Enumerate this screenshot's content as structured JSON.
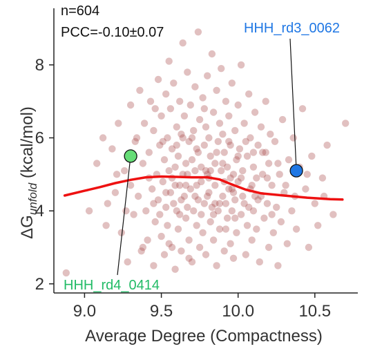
{
  "chart_data": {
    "type": "scatter",
    "xlabel": "Average Degree (Compactness)",
    "ylabel_main": "ΔG",
    "ylabel_sub": "unfold",
    "ylabel_rest": " (kcal/mol)",
    "xlim": [
      8.8,
      10.78
    ],
    "ylim": [
      1.75,
      9.55
    ],
    "x_ticks": [
      9.0,
      9.5,
      10.0,
      10.5
    ],
    "x_tick_labels": [
      "9.0",
      "9.5",
      "10.0",
      "10.5"
    ],
    "y_ticks": [
      2,
      4,
      6,
      8
    ],
    "y_tick_labels": [
      "2",
      "4",
      "6",
      "8"
    ],
    "stats": {
      "n": "n=604",
      "pcc": "PCC=-0.10±0.07"
    },
    "point_color": "#a94a4a",
    "trend_color": "#ee1111",
    "trend": [
      [
        8.87,
        4.42
      ],
      [
        9.0,
        4.55
      ],
      [
        9.1,
        4.65
      ],
      [
        9.2,
        4.76
      ],
      [
        9.3,
        4.85
      ],
      [
        9.4,
        4.92
      ],
      [
        9.5,
        4.94
      ],
      [
        9.6,
        4.93
      ],
      [
        9.7,
        4.92
      ],
      [
        9.8,
        4.92
      ],
      [
        9.88,
        4.86
      ],
      [
        9.95,
        4.74
      ],
      [
        10.05,
        4.58
      ],
      [
        10.15,
        4.48
      ],
      [
        10.3,
        4.42
      ],
      [
        10.45,
        4.36
      ],
      [
        10.6,
        4.32
      ],
      [
        10.68,
        4.31
      ]
    ],
    "highlights": [
      {
        "name": "HHH_rd4_0414",
        "x": 9.3,
        "y": 5.5,
        "color": "#66dd77",
        "text_color": "#22bb66",
        "label_anchor": "bottom-left"
      },
      {
        "name": "HHH_rd3_0062",
        "x": 10.38,
        "y": 5.1,
        "color": "#1f77e4",
        "text_color": "#1f77e4",
        "label_anchor": "top-right"
      }
    ],
    "points": [
      [
        8.88,
        2.3
      ],
      [
        9.03,
        4.0
      ],
      [
        9.08,
        5.3
      ],
      [
        9.12,
        6.0
      ],
      [
        9.15,
        4.2
      ],
      [
        9.18,
        5.7
      ],
      [
        9.2,
        4.5
      ],
      [
        9.22,
        6.4
      ],
      [
        9.24,
        3.4
      ],
      [
        9.26,
        5.1
      ],
      [
        9.28,
        2.6
      ],
      [
        9.3,
        4.7
      ],
      [
        9.3,
        6.9
      ],
      [
        9.32,
        3.9
      ],
      [
        9.33,
        5.9
      ],
      [
        9.35,
        4.4
      ],
      [
        9.36,
        7.3
      ],
      [
        9.37,
        2.9
      ],
      [
        9.38,
        5.3
      ],
      [
        9.39,
        6.4
      ],
      [
        9.4,
        4.0
      ],
      [
        9.41,
        3.2
      ],
      [
        9.42,
        5.6
      ],
      [
        9.43,
        7.0
      ],
      [
        9.44,
        4.6
      ],
      [
        9.45,
        2.5
      ],
      [
        9.45,
        6.2
      ],
      [
        9.46,
        3.7
      ],
      [
        9.47,
        5.0
      ],
      [
        9.48,
        7.6
      ],
      [
        9.48,
        4.3
      ],
      [
        9.49,
        5.8
      ],
      [
        9.5,
        3.3
      ],
      [
        9.5,
        6.6
      ],
      [
        9.51,
        4.8
      ],
      [
        9.52,
        2.8
      ],
      [
        9.52,
        5.4
      ],
      [
        9.53,
        7.2
      ],
      [
        9.53,
        4.1
      ],
      [
        9.54,
        6.0
      ],
      [
        9.54,
        3.6
      ],
      [
        9.55,
        5.1
      ],
      [
        9.55,
        8.1
      ],
      [
        9.56,
        4.5
      ],
      [
        9.56,
        6.8
      ],
      [
        9.57,
        3.0
      ],
      [
        9.57,
        5.7
      ],
      [
        9.58,
        4.2
      ],
      [
        9.58,
        7.5
      ],
      [
        9.59,
        5.2
      ],
      [
        9.59,
        2.4
      ],
      [
        9.6,
        6.3
      ],
      [
        9.6,
        4.0
      ],
      [
        9.61,
        5.5
      ],
      [
        9.61,
        3.5
      ],
      [
        9.62,
        7.0
      ],
      [
        9.62,
        4.7
      ],
      [
        9.63,
        6.1
      ],
      [
        9.63,
        2.9
      ],
      [
        9.64,
        5.0
      ],
      [
        9.64,
        8.6
      ],
      [
        9.65,
        4.4
      ],
      [
        9.65,
        6.6
      ],
      [
        9.66,
        3.8
      ],
      [
        9.66,
        5.3
      ],
      [
        9.67,
        7.8
      ],
      [
        9.67,
        4.1
      ],
      [
        9.68,
        5.9
      ],
      [
        9.68,
        3.2
      ],
      [
        9.69,
        6.9
      ],
      [
        9.69,
        4.6
      ],
      [
        9.7,
        5.4
      ],
      [
        9.7,
        2.6
      ],
      [
        9.71,
        6.2
      ],
      [
        9.71,
        4.0
      ],
      [
        9.72,
        7.4
      ],
      [
        9.72,
        5.1
      ],
      [
        9.73,
        3.6
      ],
      [
        9.73,
        5.7
      ],
      [
        9.74,
        4.3
      ],
      [
        9.74,
        8.9
      ],
      [
        9.75,
        6.5
      ],
      [
        9.75,
        3.0
      ],
      [
        9.76,
        5.2
      ],
      [
        9.76,
        4.8
      ],
      [
        9.77,
        7.1
      ],
      [
        9.77,
        3.4
      ],
      [
        9.78,
        5.8
      ],
      [
        9.78,
        4.2
      ],
      [
        9.79,
        6.3
      ],
      [
        9.79,
        2.8
      ],
      [
        9.8,
        5.0
      ],
      [
        9.8,
        7.7
      ],
      [
        9.81,
        4.5
      ],
      [
        9.81,
        6.0
      ],
      [
        9.82,
        3.7
      ],
      [
        9.82,
        5.5
      ],
      [
        9.83,
        8.3
      ],
      [
        9.83,
        4.1
      ],
      [
        9.84,
        6.7
      ],
      [
        9.84,
        3.2
      ],
      [
        9.85,
        5.3
      ],
      [
        9.85,
        4.7
      ],
      [
        9.86,
        7.3
      ],
      [
        9.86,
        2.5
      ],
      [
        9.87,
        5.9
      ],
      [
        9.87,
        4.0
      ],
      [
        9.88,
        6.4
      ],
      [
        9.88,
        3.5
      ],
      [
        9.89,
        5.1
      ],
      [
        9.89,
        7.9
      ],
      [
        9.9,
        4.4
      ],
      [
        9.9,
        6.1
      ],
      [
        9.91,
        2.9
      ],
      [
        9.91,
        5.6
      ],
      [
        9.92,
        4.2
      ],
      [
        9.92,
        7.0
      ],
      [
        9.93,
        3.8
      ],
      [
        9.93,
        5.2
      ],
      [
        9.94,
        6.6
      ],
      [
        9.94,
        4.6
      ],
      [
        9.95,
        3.1
      ],
      [
        9.95,
        5.8
      ],
      [
        9.96,
        4.0
      ],
      [
        9.96,
        7.5
      ],
      [
        9.97,
        5.0
      ],
      [
        9.97,
        2.7
      ],
      [
        9.98,
        6.2
      ],
      [
        9.98,
        4.3
      ],
      [
        9.99,
        5.4
      ],
      [
        9.99,
        3.4
      ],
      [
        10.0,
        6.9
      ],
      [
        10.0,
        4.8
      ],
      [
        10.01,
        5.7
      ],
      [
        10.02,
        3.9
      ],
      [
        10.02,
        8.0
      ],
      [
        10.03,
        5.1
      ],
      [
        10.04,
        4.2
      ],
      [
        10.04,
        6.4
      ],
      [
        10.05,
        2.8
      ],
      [
        10.06,
        5.5
      ],
      [
        10.06,
        3.6
      ],
      [
        10.07,
        7.2
      ],
      [
        10.08,
        4.6
      ],
      [
        10.08,
        6.0
      ],
      [
        10.09,
        3.2
      ],
      [
        10.1,
        5.2
      ],
      [
        10.1,
        4.0
      ],
      [
        10.11,
        6.7
      ],
      [
        10.12,
        4.9
      ],
      [
        10.12,
        3.5
      ],
      [
        10.13,
        5.8
      ],
      [
        10.14,
        2.6
      ],
      [
        10.15,
        4.4
      ],
      [
        10.15,
        6.3
      ],
      [
        10.16,
        5.0
      ],
      [
        10.17,
        3.8
      ],
      [
        10.18,
        5.6
      ],
      [
        10.18,
        7.0
      ],
      [
        10.19,
        4.2
      ],
      [
        10.2,
        3.0
      ],
      [
        10.2,
        5.3
      ],
      [
        10.21,
        6.1
      ],
      [
        10.22,
        4.7
      ],
      [
        10.23,
        3.4
      ],
      [
        10.24,
        5.9
      ],
      [
        10.25,
        4.1
      ],
      [
        10.26,
        2.5
      ],
      [
        10.27,
        5.0
      ],
      [
        10.28,
        3.7
      ],
      [
        10.29,
        6.5
      ],
      [
        10.3,
        4.5
      ],
      [
        10.32,
        3.1
      ],
      [
        10.33,
        5.4
      ],
      [
        10.35,
        4.0
      ],
      [
        10.36,
        6.0
      ],
      [
        10.38,
        3.5
      ],
      [
        10.4,
        5.2
      ],
      [
        10.42,
        6.8
      ],
      [
        10.44,
        4.6
      ],
      [
        10.46,
        3.0
      ],
      [
        10.48,
        5.5
      ],
      [
        10.5,
        4.2
      ],
      [
        10.52,
        3.6
      ],
      [
        10.55,
        4.9
      ],
      [
        10.58,
        5.8
      ],
      [
        10.62,
        3.9
      ],
      [
        10.7,
        6.4
      ],
      [
        9.14,
        3.6
      ],
      [
        9.21,
        5.0
      ],
      [
        9.27,
        4.0
      ],
      [
        9.34,
        6.0
      ],
      [
        9.38,
        3.0
      ],
      [
        9.42,
        4.9
      ],
      [
        9.46,
        6.8
      ],
      [
        9.49,
        3.9
      ],
      [
        9.51,
        5.9
      ],
      [
        9.55,
        3.1
      ],
      [
        9.57,
        4.9
      ],
      [
        9.6,
        5.8
      ],
      [
        9.62,
        3.9
      ],
      [
        9.64,
        6.0
      ],
      [
        9.66,
        4.7
      ],
      [
        9.68,
        2.7
      ],
      [
        9.7,
        6.0
      ],
      [
        9.72,
        4.4
      ],
      [
        9.74,
        5.6
      ],
      [
        9.76,
        3.9
      ],
      [
        9.78,
        6.8
      ],
      [
        9.8,
        4.4
      ],
      [
        9.82,
        5.1
      ],
      [
        9.84,
        3.9
      ],
      [
        9.86,
        5.6
      ],
      [
        9.88,
        4.2
      ],
      [
        9.9,
        5.3
      ],
      [
        9.92,
        3.5
      ],
      [
        9.94,
        5.9
      ],
      [
        9.96,
        4.6
      ],
      [
        9.98,
        3.8
      ],
      [
        10.0,
        5.5
      ],
      [
        10.03,
        4.4
      ],
      [
        10.05,
        5.9
      ],
      [
        10.07,
        4.1
      ],
      [
        10.1,
        5.6
      ],
      [
        10.13,
        4.3
      ],
      [
        10.16,
        5.6
      ],
      [
        10.19,
        4.9
      ],
      [
        10.22,
        3.9
      ],
      [
        10.26,
        5.3
      ],
      [
        10.31,
        4.7
      ],
      [
        10.37,
        4.4
      ],
      [
        10.45,
        5.0
      ],
      [
        10.56,
        4.4
      ],
      [
        9.53,
        4.5
      ],
      [
        9.59,
        4.7
      ],
      [
        9.67,
        5.0
      ],
      [
        9.73,
        4.7
      ],
      [
        9.79,
        5.1
      ],
      [
        9.85,
        4.2
      ],
      [
        9.91,
        4.8
      ],
      [
        9.97,
        4.5
      ],
      [
        10.02,
        4.9
      ],
      [
        10.09,
        4.7
      ],
      [
        9.45,
        4.2
      ],
      [
        9.63,
        4.3
      ],
      [
        9.81,
        4.9
      ],
      [
        9.95,
        4.9
      ],
      [
        10.11,
        4.4
      ]
    ]
  }
}
